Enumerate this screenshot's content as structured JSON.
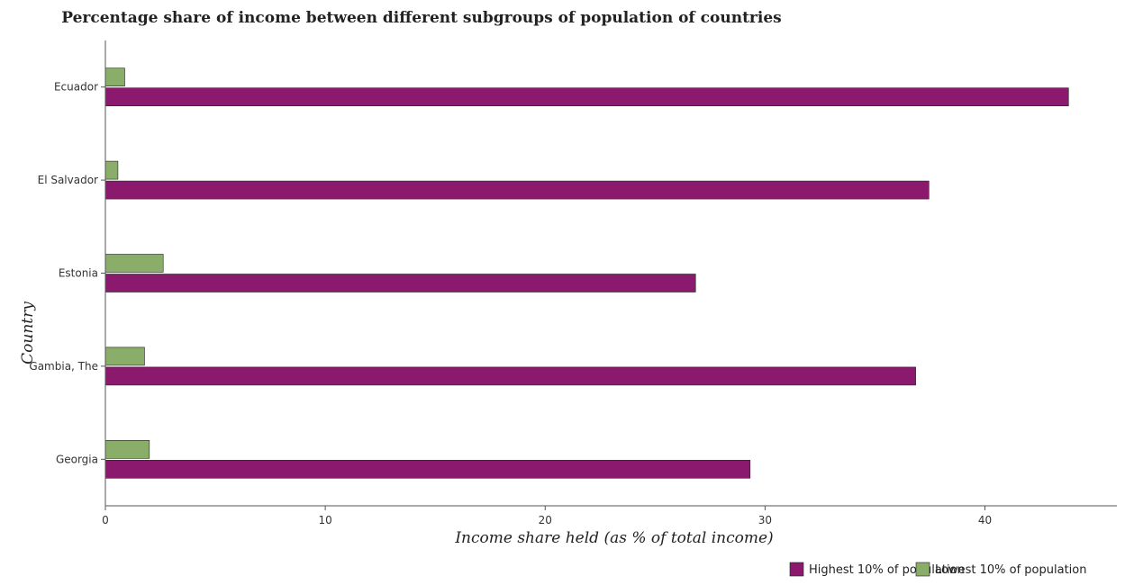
{
  "chart_data": {
    "type": "bar",
    "orientation": "horizontal",
    "title": "Percentage share of income between different subgroups of population of countries",
    "xlabel": "Income share held (as % of total income)",
    "ylabel": "Country",
    "xlim": [
      0,
      46
    ],
    "xticks": [
      0,
      10,
      20,
      30,
      40
    ],
    "categories": [
      "Ecuador",
      "El Salvador",
      "Estonia",
      "Gambia, The",
      "Georgia"
    ],
    "series": [
      {
        "name": "Highest 10% of population",
        "color": "#8b1a6e",
        "values": [
          43.8,
          37.45,
          26.84,
          36.85,
          29.32
        ]
      },
      {
        "name": "Lowest 10% of population",
        "color": "#8bad6a",
        "values": [
          0.88,
          0.57,
          2.63,
          1.78,
          2.0
        ]
      }
    ],
    "grid": false,
    "legend": "bottom-right"
  }
}
